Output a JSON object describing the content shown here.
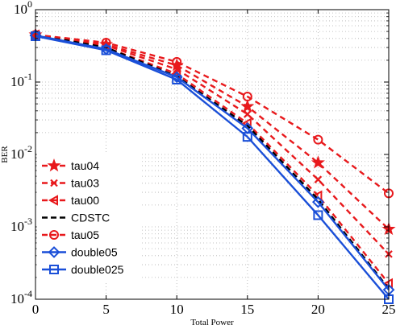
{
  "chart_data": {
    "type": "line",
    "xlabel": "Total Power",
    "ylabel": "BER",
    "x": [
      0,
      5,
      10,
      15,
      20,
      25
    ],
    "xlim": [
      0,
      25
    ],
    "ylim": [
      0.0001,
      1
    ],
    "yscale": "log",
    "x_ticks": [
      "0",
      "5",
      "10",
      "15",
      "20",
      "25"
    ],
    "y_ticks": [
      {
        "base": "10",
        "exp": "-4",
        "value": 0.0001
      },
      {
        "base": "10",
        "exp": "-3",
        "value": 0.001
      },
      {
        "base": "10",
        "exp": "-2",
        "value": 0.01
      },
      {
        "base": "10",
        "exp": "-1",
        "value": 0.1
      },
      {
        "base": "10",
        "exp": "0",
        "value": 1
      }
    ],
    "grid": true,
    "legend_position": "lower-left",
    "series": [
      {
        "name": "tau04",
        "color": "#e8191c",
        "dash": true,
        "marker": "star",
        "values": [
          0.45,
          0.33,
          0.17,
          0.046,
          0.0077,
          0.00093
        ]
      },
      {
        "name": "tau03",
        "color": "#e8191c",
        "dash": true,
        "marker": "x",
        "values": [
          0.45,
          0.32,
          0.15,
          0.036,
          0.0045,
          0.00042
        ]
      },
      {
        "name": "tau00",
        "color": "#e8191c",
        "dash": true,
        "marker": "triangle-left",
        "values": [
          0.45,
          0.3,
          0.13,
          0.027,
          0.0027,
          0.000165
        ]
      },
      {
        "name": "CDSTC",
        "color": "#000000",
        "dash": true,
        "marker": "none",
        "values": [
          0.45,
          0.3,
          0.12,
          0.025,
          0.0024,
          0.00014
        ]
      },
      {
        "name": "tau05",
        "color": "#e8191c",
        "dash": true,
        "marker": "circle",
        "values": [
          0.45,
          0.35,
          0.19,
          0.063,
          0.016,
          0.0029
        ]
      },
      {
        "name": "double05",
        "color": "#1a4fd8",
        "dash": false,
        "marker": "diamond",
        "values": [
          0.44,
          0.285,
          0.117,
          0.023,
          0.0022,
          0.000135
        ]
      },
      {
        "name": "double025",
        "color": "#1a4fd8",
        "dash": false,
        "marker": "square",
        "values": [
          0.43,
          0.275,
          0.108,
          0.0175,
          0.00145,
          0.0001
        ]
      }
    ]
  }
}
